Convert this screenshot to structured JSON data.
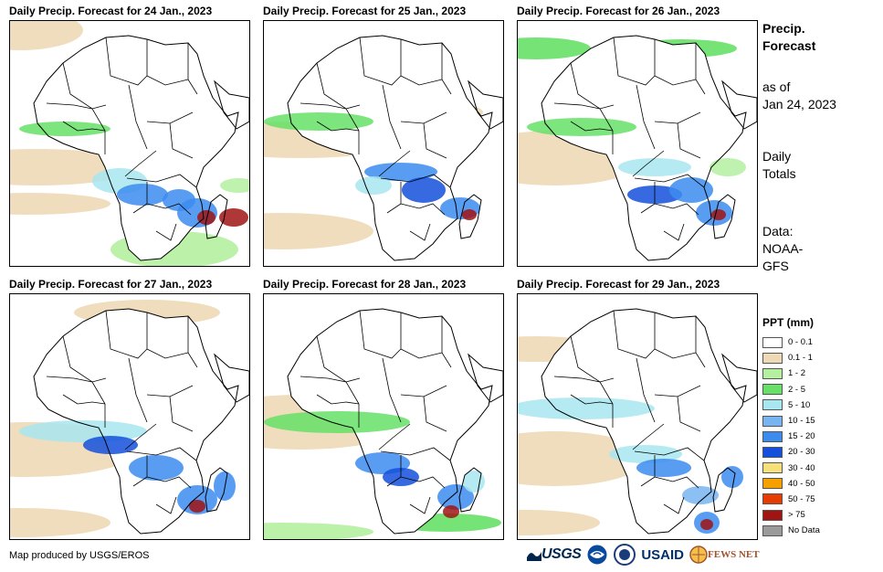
{
  "panels": [
    {
      "title": "Daily Precip. Forecast for 24 Jan., 2023"
    },
    {
      "title": "Daily Precip. Forecast for 25 Jan., 2023"
    },
    {
      "title": "Daily Precip. Forecast for 26 Jan., 2023"
    },
    {
      "title": "Daily Precip. Forecast for 27 Jan., 2023"
    },
    {
      "title": "Daily Precip. Forecast for 28 Jan., 2023"
    },
    {
      "title": "Daily Precip. Forecast for 29 Jan., 2023"
    }
  ],
  "sidebar": {
    "title_line1": "Precip.",
    "title_line2": "Forecast",
    "asof_line1": "as of",
    "asof_line2": "Jan 24, 2023",
    "daily_line1": "Daily",
    "daily_line2": "Totals",
    "data_line1": "Data:",
    "data_line2": "NOAA-",
    "data_line3": "GFS"
  },
  "legend": {
    "title": "PPT (mm)",
    "items": [
      {
        "label": "0 - 0.1",
        "color": "#ffffff"
      },
      {
        "label": "0.1 - 1",
        "color": "#edd9b6"
      },
      {
        "label": "1 - 2",
        "color": "#b4f0a0"
      },
      {
        "label": "2 - 5",
        "color": "#66e066"
      },
      {
        "label": "5 - 10",
        "color": "#a8e6f0"
      },
      {
        "label": "10 - 15",
        "color": "#78b4f0"
      },
      {
        "label": "15 - 20",
        "color": "#3c8cf0"
      },
      {
        "label": "20 - 30",
        "color": "#1450dc"
      },
      {
        "label": "30 - 40",
        "color": "#f7e07a"
      },
      {
        "label": "40 - 50",
        "color": "#f5a000"
      },
      {
        "label": "50 - 75",
        "color": "#e63c00"
      },
      {
        "label": "> 75",
        "color": "#a01414"
      },
      {
        "label": "No Data",
        "color": "#9a9a9a"
      }
    ]
  },
  "footer": {
    "credit": "Map produced by USGS/EROS",
    "logo_usgs": "USGS",
    "logo_usaid": "USAID",
    "logo_fews": "FEWS NET"
  }
}
